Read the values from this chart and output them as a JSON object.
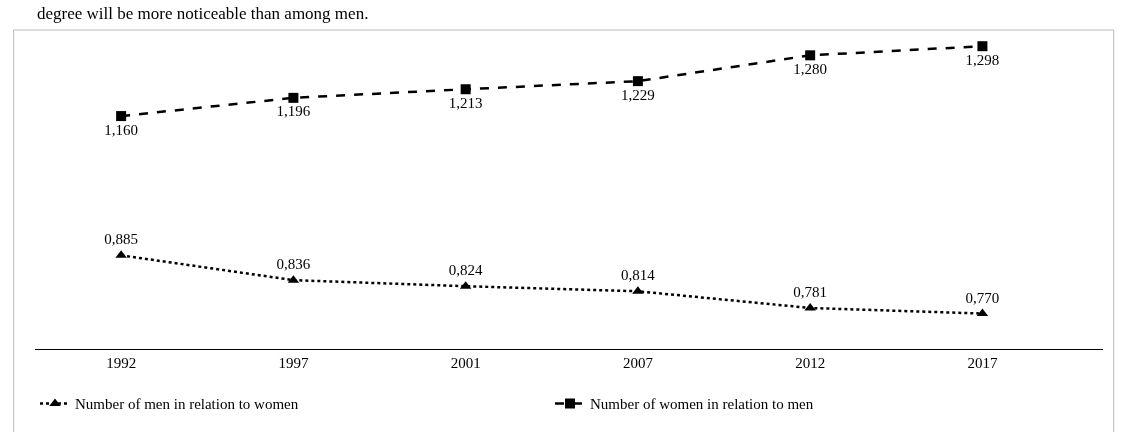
{
  "chart_data": {
    "type": "line",
    "categories": [
      "1992",
      "1997",
      "2001",
      "2007",
      "2012",
      "2017"
    ],
    "series": [
      {
        "name": "Number of men in relation to women",
        "color": "#000000",
        "marker": "triangle",
        "line_style": "dotted",
        "values": [
          0.885,
          0.836,
          0.824,
          0.814,
          0.781,
          0.77
        ],
        "value_labels": [
          "0,885",
          "0,836",
          "0,824",
          "0,814",
          "0,781",
          "0,770"
        ]
      },
      {
        "name": "Number of women in relation to men",
        "color": "#000000",
        "marker": "square",
        "line_style": "dashed",
        "values": [
          1.16,
          1.196,
          1.213,
          1.229,
          1.28,
          1.298
        ],
        "value_labels": [
          "1,160",
          "1,196",
          "1,213",
          "1,229",
          "1,280",
          "1,298"
        ]
      }
    ],
    "ylim": [
      0.7,
      1.33
    ],
    "tick_labels": "x",
    "legend": "bottom",
    "annotations": [
      "degree will be more noticeable than among men."
    ]
  }
}
